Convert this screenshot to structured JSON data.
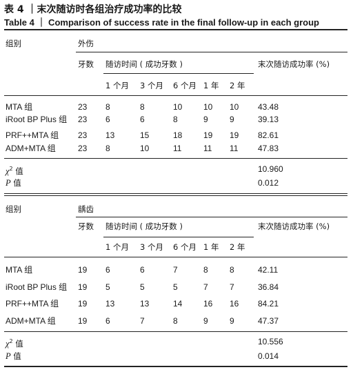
{
  "caption": {
    "cn": "表 4 ｜末次随访时各组治疗成功率的比较",
    "en": "Table 4 ｜ Comparison of success rate in the final follow-up in each group"
  },
  "headers": {
    "group": "组别",
    "teeth": "牙数",
    "followup": "随访时间 ( 成功牙数 )",
    "rate": "末次随访成功率 (%)",
    "periods": [
      "1 个月",
      "3 个月",
      "6 个月",
      "1 年",
      "2 年"
    ]
  },
  "sections": [
    {
      "type_label": "外伤",
      "rows": [
        {
          "group": "MTA 组",
          "teeth": "23",
          "v": [
            "8",
            "8",
            "10",
            "10",
            "10"
          ],
          "rate": "43.48"
        },
        {
          "group": "iRoot BP Plus 组",
          "teeth": "23",
          "v": [
            "6",
            "6",
            "8",
            "9",
            "9"
          ],
          "rate": "39.13"
        },
        {
          "group": "PRF++MTA 组",
          "teeth": "23",
          "v": [
            "13",
            "15",
            "18",
            "19",
            "19"
          ],
          "rate": "82.61"
        },
        {
          "group": "ADM+MTA 组",
          "teeth": "23",
          "v": [
            "8",
            "10",
            "11",
            "11",
            "11"
          ],
          "rate": "47.83"
        }
      ],
      "chi_label": "值",
      "chi_value": "10.960",
      "p_label": "值",
      "p_value": "0.012"
    },
    {
      "type_label": "龋齿",
      "rows": [
        {
          "group": "MTA 组",
          "teeth": "19",
          "v": [
            "6",
            "6",
            "7",
            "8",
            "8"
          ],
          "rate": "42.11"
        },
        {
          "group": "iRoot BP Plus 组",
          "teeth": "19",
          "v": [
            "5",
            "5",
            "5",
            "7",
            "7"
          ],
          "rate": "36.84"
        },
        {
          "group": "PRF++MTA 组",
          "teeth": "19",
          "v": [
            "13",
            "13",
            "14",
            "16",
            "16"
          ],
          "rate": "84.21"
        },
        {
          "group": "ADM+MTA 组",
          "teeth": "19",
          "v": [
            "6",
            "7",
            "8",
            "9",
            "9"
          ],
          "rate": "47.37"
        }
      ],
      "chi_label": "值",
      "chi_value": "10.556",
      "p_label": "值",
      "p_value": "0.014"
    }
  ]
}
